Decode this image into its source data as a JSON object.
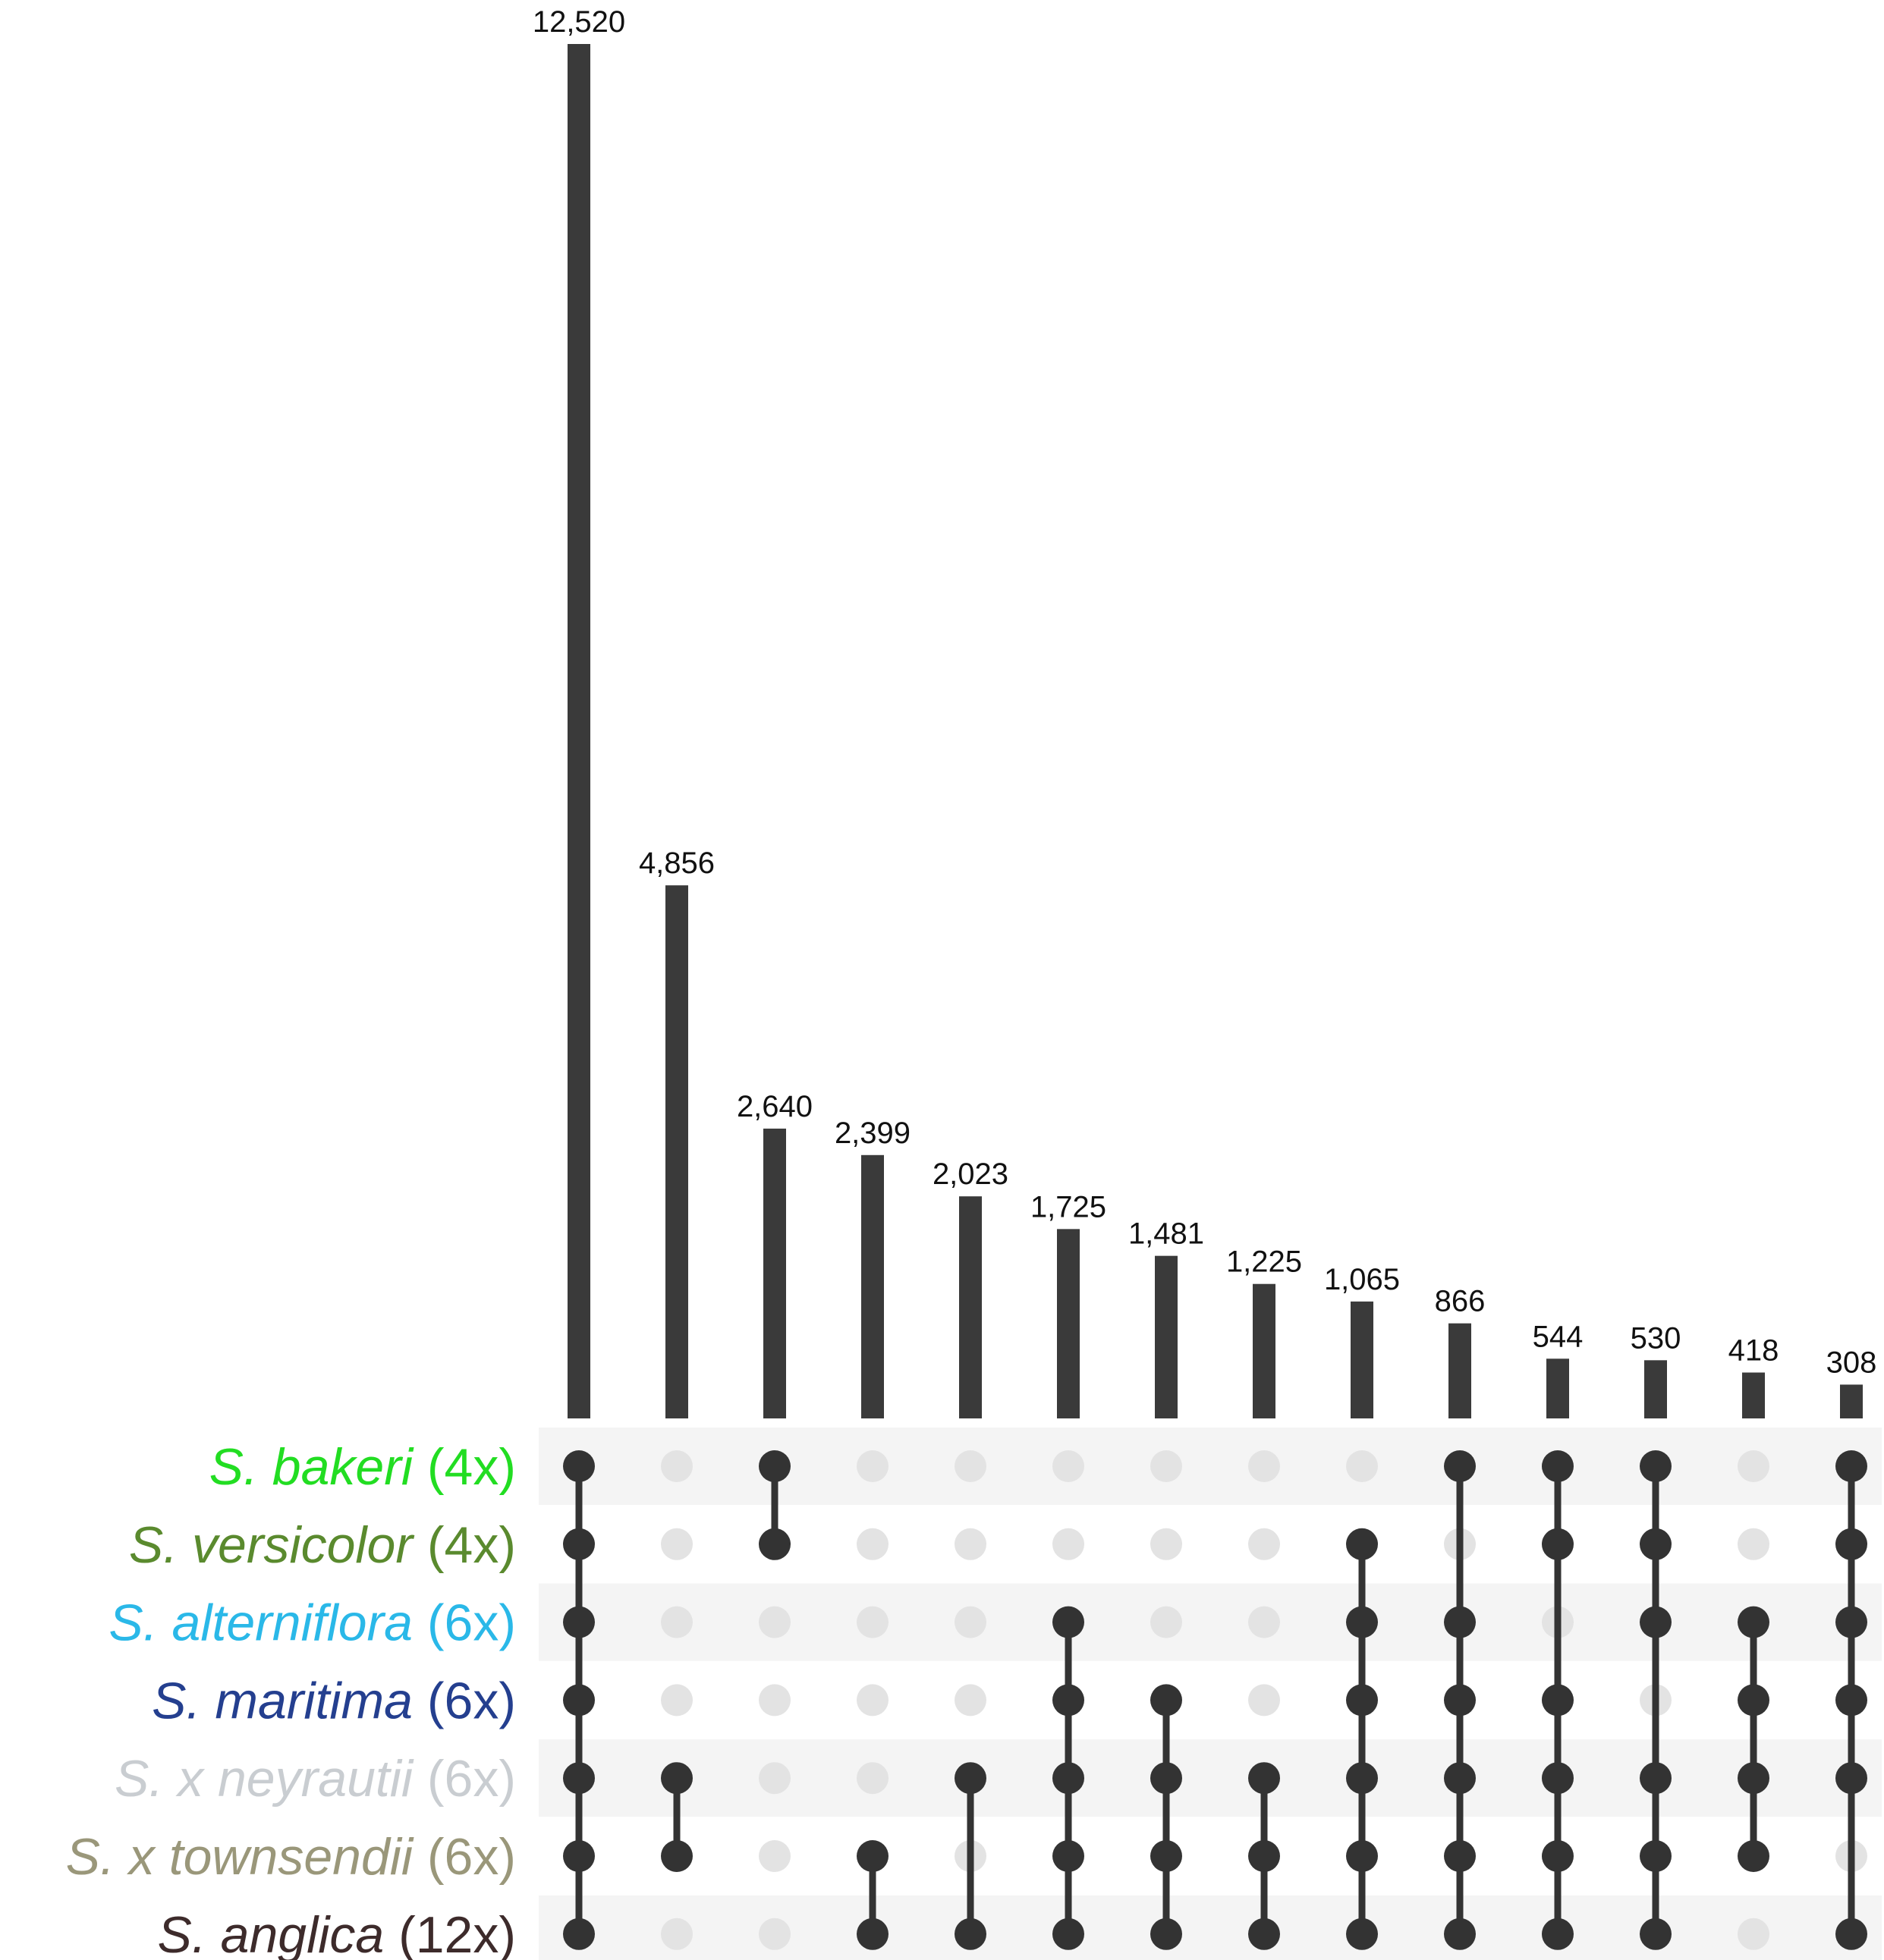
{
  "chart_data": {
    "type": "bar",
    "subtype": "upset",
    "title": "",
    "xlabel": "",
    "ylabel": "",
    "ylim": [
      0,
      12520
    ],
    "grid": false,
    "legend": "none",
    "values": [
      12520,
      4856,
      2640,
      2399,
      2023,
      1725,
      1481,
      1225,
      1065,
      866,
      544,
      530,
      418,
      308
    ],
    "value_labels": [
      "12,520",
      "4,856",
      "2,640",
      "2,399",
      "2,023",
      "1,725",
      "1,481",
      "1,225",
      "1,065",
      "866",
      "544",
      "530",
      "418",
      "308"
    ],
    "sets": [
      {
        "species": "S. bakeri",
        "ploidy": "(4x)",
        "color": "#22dd22"
      },
      {
        "species": "S. versicolor",
        "ploidy": "(4x)",
        "color": "#5a8a2e"
      },
      {
        "species": "S. alterniflora",
        "ploidy": "(6x)",
        "color": "#2ab8e8"
      },
      {
        "species": "S. maritima",
        "ploidy": "(6x)",
        "color": "#243f8f"
      },
      {
        "species": "S. x neyrautii",
        "ploidy": "(6x)",
        "color": "#c9cdd1"
      },
      {
        "species": "S. x townsendii",
        "ploidy": "(6x)",
        "color": "#9a977a"
      },
      {
        "species": "S. anglica",
        "ploidy": "(12x)",
        "color": "#3d2b2b"
      }
    ],
    "intersections": [
      [
        0,
        1,
        2,
        3,
        4,
        5,
        6
      ],
      [
        4,
        5
      ],
      [
        0,
        1
      ],
      [
        5,
        6
      ],
      [
        4,
        6
      ],
      [
        2,
        3,
        4,
        5,
        6
      ],
      [
        3,
        4,
        5,
        6
      ],
      [
        4,
        5,
        6
      ],
      [
        1,
        2,
        3,
        4,
        5,
        6
      ],
      [
        0,
        2,
        3,
        4,
        5,
        6
      ],
      [
        0,
        1,
        3,
        4,
        5,
        6
      ],
      [
        0,
        1,
        2,
        4,
        5,
        6
      ],
      [
        2,
        3,
        4,
        5
      ],
      [
        0,
        1,
        2,
        3,
        4,
        6
      ]
    ],
    "colors": {
      "bar": "#3a3a3a",
      "dot_active": "#333333",
      "dot_inactive": "#e3e3e3",
      "row_shade": "#f4f4f4"
    }
  }
}
